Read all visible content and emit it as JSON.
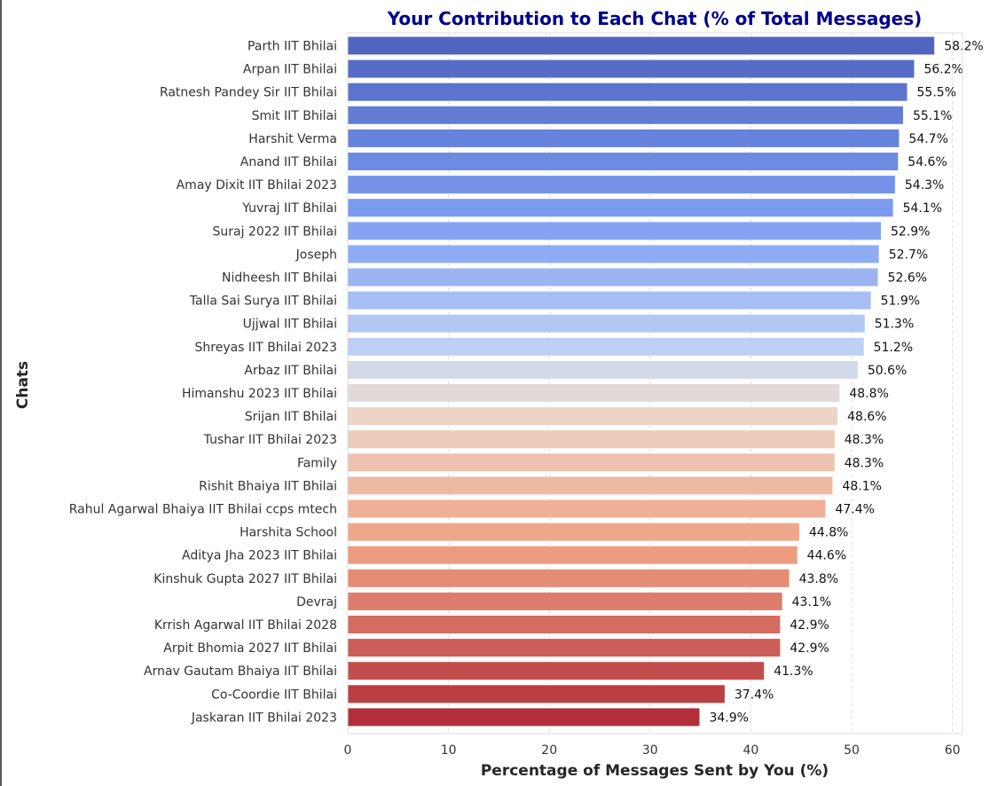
{
  "chart_data": {
    "type": "bar",
    "orientation": "horizontal",
    "title": "Your Contribution to Each Chat (% of Total Messages)",
    "xlabel": "Percentage of Messages Sent by You (%)",
    "ylabel": "Chats",
    "xlim": [
      0,
      61
    ],
    "xticks": [
      0,
      10,
      20,
      30,
      40,
      50,
      60
    ],
    "grid": "x-dashed",
    "palette": "coolwarm (blue to red)",
    "categories": [
      "Parth IIT Bhilai",
      "Arpan IIT Bhilai",
      "Ratnesh Pandey Sir IIT Bhilai",
      "Smit IIT Bhilai",
      "Harshit Verma",
      "Anand IIT Bhilai",
      "Amay Dixit IIT Bhilai 2023",
      "Yuvraj IIT Bhilai",
      "Suraj 2022 IIT Bhilai",
      "Joseph",
      "Nidheesh IIT Bhilai",
      "Talla Sai Surya IIT Bhilai",
      "Ujjwal IIT Bhilai",
      "Shreyas IIT Bhilai 2023",
      "Arbaz IIT Bhilai",
      "Himanshu 2023 IIT Bhilai",
      "Srijan IIT Bhilai",
      "Tushar IIT Bhilai 2023",
      "Family",
      "Rishit Bhaiya IIT Bhilai",
      "Rahul Agarwal Bhaiya IIT Bhilai ccps mtech",
      "Harshita School",
      "Aditya Jha 2023 IIT Bhilai",
      "Kinshuk Gupta 2027 IIT Bhilai",
      "Devraj",
      "Krrish Agarwal IIT Bhilai 2028",
      "Arpit Bhomia 2027 IIT Bhilai",
      "Arnav Gautam Bhaiya IIT Bhilai",
      "Co-Coordie IIT Bhilai",
      "Jaskaran IIT Bhilai 2023"
    ],
    "values": [
      58.2,
      56.2,
      55.5,
      55.1,
      54.7,
      54.6,
      54.3,
      54.1,
      52.9,
      52.7,
      52.6,
      51.9,
      51.3,
      51.2,
      50.6,
      48.8,
      48.6,
      48.3,
      48.3,
      48.1,
      47.4,
      44.8,
      44.6,
      43.8,
      43.1,
      42.9,
      42.9,
      41.3,
      37.4,
      34.9
    ],
    "value_labels": [
      "58.2%",
      "56.2%",
      "55.5%",
      "55.1%",
      "54.7%",
      "54.6%",
      "54.3%",
      "54.1%",
      "52.9%",
      "52.7%",
      "52.6%",
      "51.9%",
      "51.3%",
      "51.2%",
      "50.6%",
      "48.8%",
      "48.6%",
      "48.3%",
      "48.3%",
      "48.1%",
      "47.4%",
      "44.8%",
      "44.6%",
      "43.8%",
      "43.1%",
      "42.9%",
      "42.9%",
      "41.3%",
      "37.4%",
      "34.9%"
    ]
  }
}
